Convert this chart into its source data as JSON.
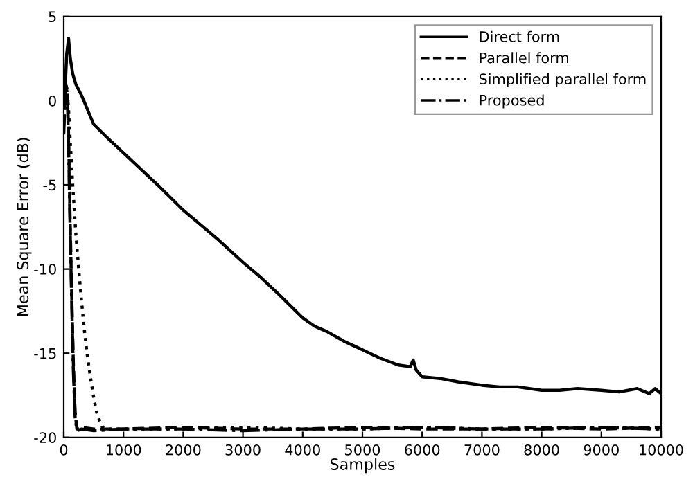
{
  "chart_data": {
    "type": "line",
    "xlabel": "Samples",
    "ylabel": "Mean Square Error (dB)",
    "xlim": [
      0,
      10000
    ],
    "xticks": [
      0,
      1000,
      2000,
      3000,
      4000,
      5000,
      6000,
      7000,
      8000,
      9000,
      10000
    ],
    "ylim": [
      -20,
      5
    ],
    "yticks": [
      -20,
      -15,
      -10,
      -5,
      0,
      5
    ],
    "grid": false,
    "legend": "top right",
    "series": [
      {
        "name": "Direct form",
        "color": "#000000",
        "line_style": "solid",
        "x": [
          0,
          20,
          50,
          80,
          110,
          150,
          200,
          300,
          500,
          700,
          1000,
          1300,
          1600,
          2000,
          2300,
          2600,
          3000,
          3300,
          3600,
          4000,
          4200,
          4400,
          4700,
          5000,
          5300,
          5600,
          5800,
          5850,
          5900,
          6000,
          6300,
          6600,
          7000,
          7300,
          7600,
          8000,
          8300,
          8600,
          9000,
          9300,
          9600,
          9800,
          9900,
          10000
        ],
        "values": [
          0,
          0.5,
          2.8,
          3.7,
          2.5,
          1.6,
          1.0,
          0.3,
          -1.4,
          -2.1,
          -3.1,
          -4.1,
          -5.1,
          -6.5,
          -7.4,
          -8.3,
          -9.6,
          -10.5,
          -11.5,
          -12.9,
          -13.4,
          -13.7,
          -14.3,
          -14.8,
          -15.3,
          -15.7,
          -15.8,
          -15.4,
          -16.0,
          -16.4,
          -16.5,
          -16.7,
          -16.9,
          -17.0,
          -17.0,
          -17.2,
          -17.2,
          -17.1,
          -17.2,
          -17.3,
          -17.1,
          -17.4,
          -17.1,
          -17.4
        ]
      },
      {
        "name": "Parallel form",
        "color": "#000000",
        "line_style": "dashed",
        "x": [
          0,
          20,
          40,
          60,
          80,
          100,
          130,
          160,
          190,
          220,
          300,
          500,
          1000,
          2000,
          3000,
          4000,
          5000,
          6000,
          7000,
          8000,
          9000,
          10000
        ],
        "values": [
          -1.5,
          0.2,
          0.9,
          0.6,
          -2.0,
          -6.0,
          -11.0,
          -15.5,
          -18.5,
          -19.5,
          -19.4,
          -19.5,
          -19.5,
          -19.4,
          -19.5,
          -19.5,
          -19.4,
          -19.5,
          -19.5,
          -19.4,
          -19.5,
          -19.4
        ]
      },
      {
        "name": "Simplified parallel form",
        "color": "#000000",
        "line_style": "dotted",
        "x": [
          0,
          20,
          40,
          60,
          80,
          110,
          150,
          200,
          250,
          300,
          350,
          400,
          450,
          500,
          550,
          600,
          650,
          700,
          1000,
          2000,
          3000,
          4000,
          5000,
          6000,
          7000,
          8000,
          9000,
          10000
        ],
        "values": [
          -1.0,
          0.3,
          0.9,
          0.5,
          -0.5,
          -2.5,
          -5.0,
          -7.8,
          -10.0,
          -12.0,
          -13.8,
          -15.3,
          -16.5,
          -17.6,
          -18.5,
          -19.0,
          -19.4,
          -19.5,
          -19.5,
          -19.5,
          -19.4,
          -19.5,
          -19.5,
          -19.4,
          -19.5,
          -19.5,
          -19.4,
          -19.5
        ]
      },
      {
        "name": "Proposed",
        "color": "#000000",
        "line_style": "dashdot",
        "x": [
          0,
          20,
          40,
          60,
          80,
          100,
          130,
          160,
          190,
          220,
          300,
          500,
          1000,
          2000,
          3000,
          4000,
          5000,
          6000,
          7000,
          8000,
          9000,
          10000
        ],
        "values": [
          -2.0,
          0.0,
          0.8,
          0.4,
          -2.5,
          -6.5,
          -11.5,
          -16.0,
          -18.8,
          -19.6,
          -19.5,
          -19.6,
          -19.5,
          -19.5,
          -19.6,
          -19.5,
          -19.5,
          -19.4,
          -19.5,
          -19.5,
          -19.4,
          -19.5
        ]
      }
    ]
  }
}
